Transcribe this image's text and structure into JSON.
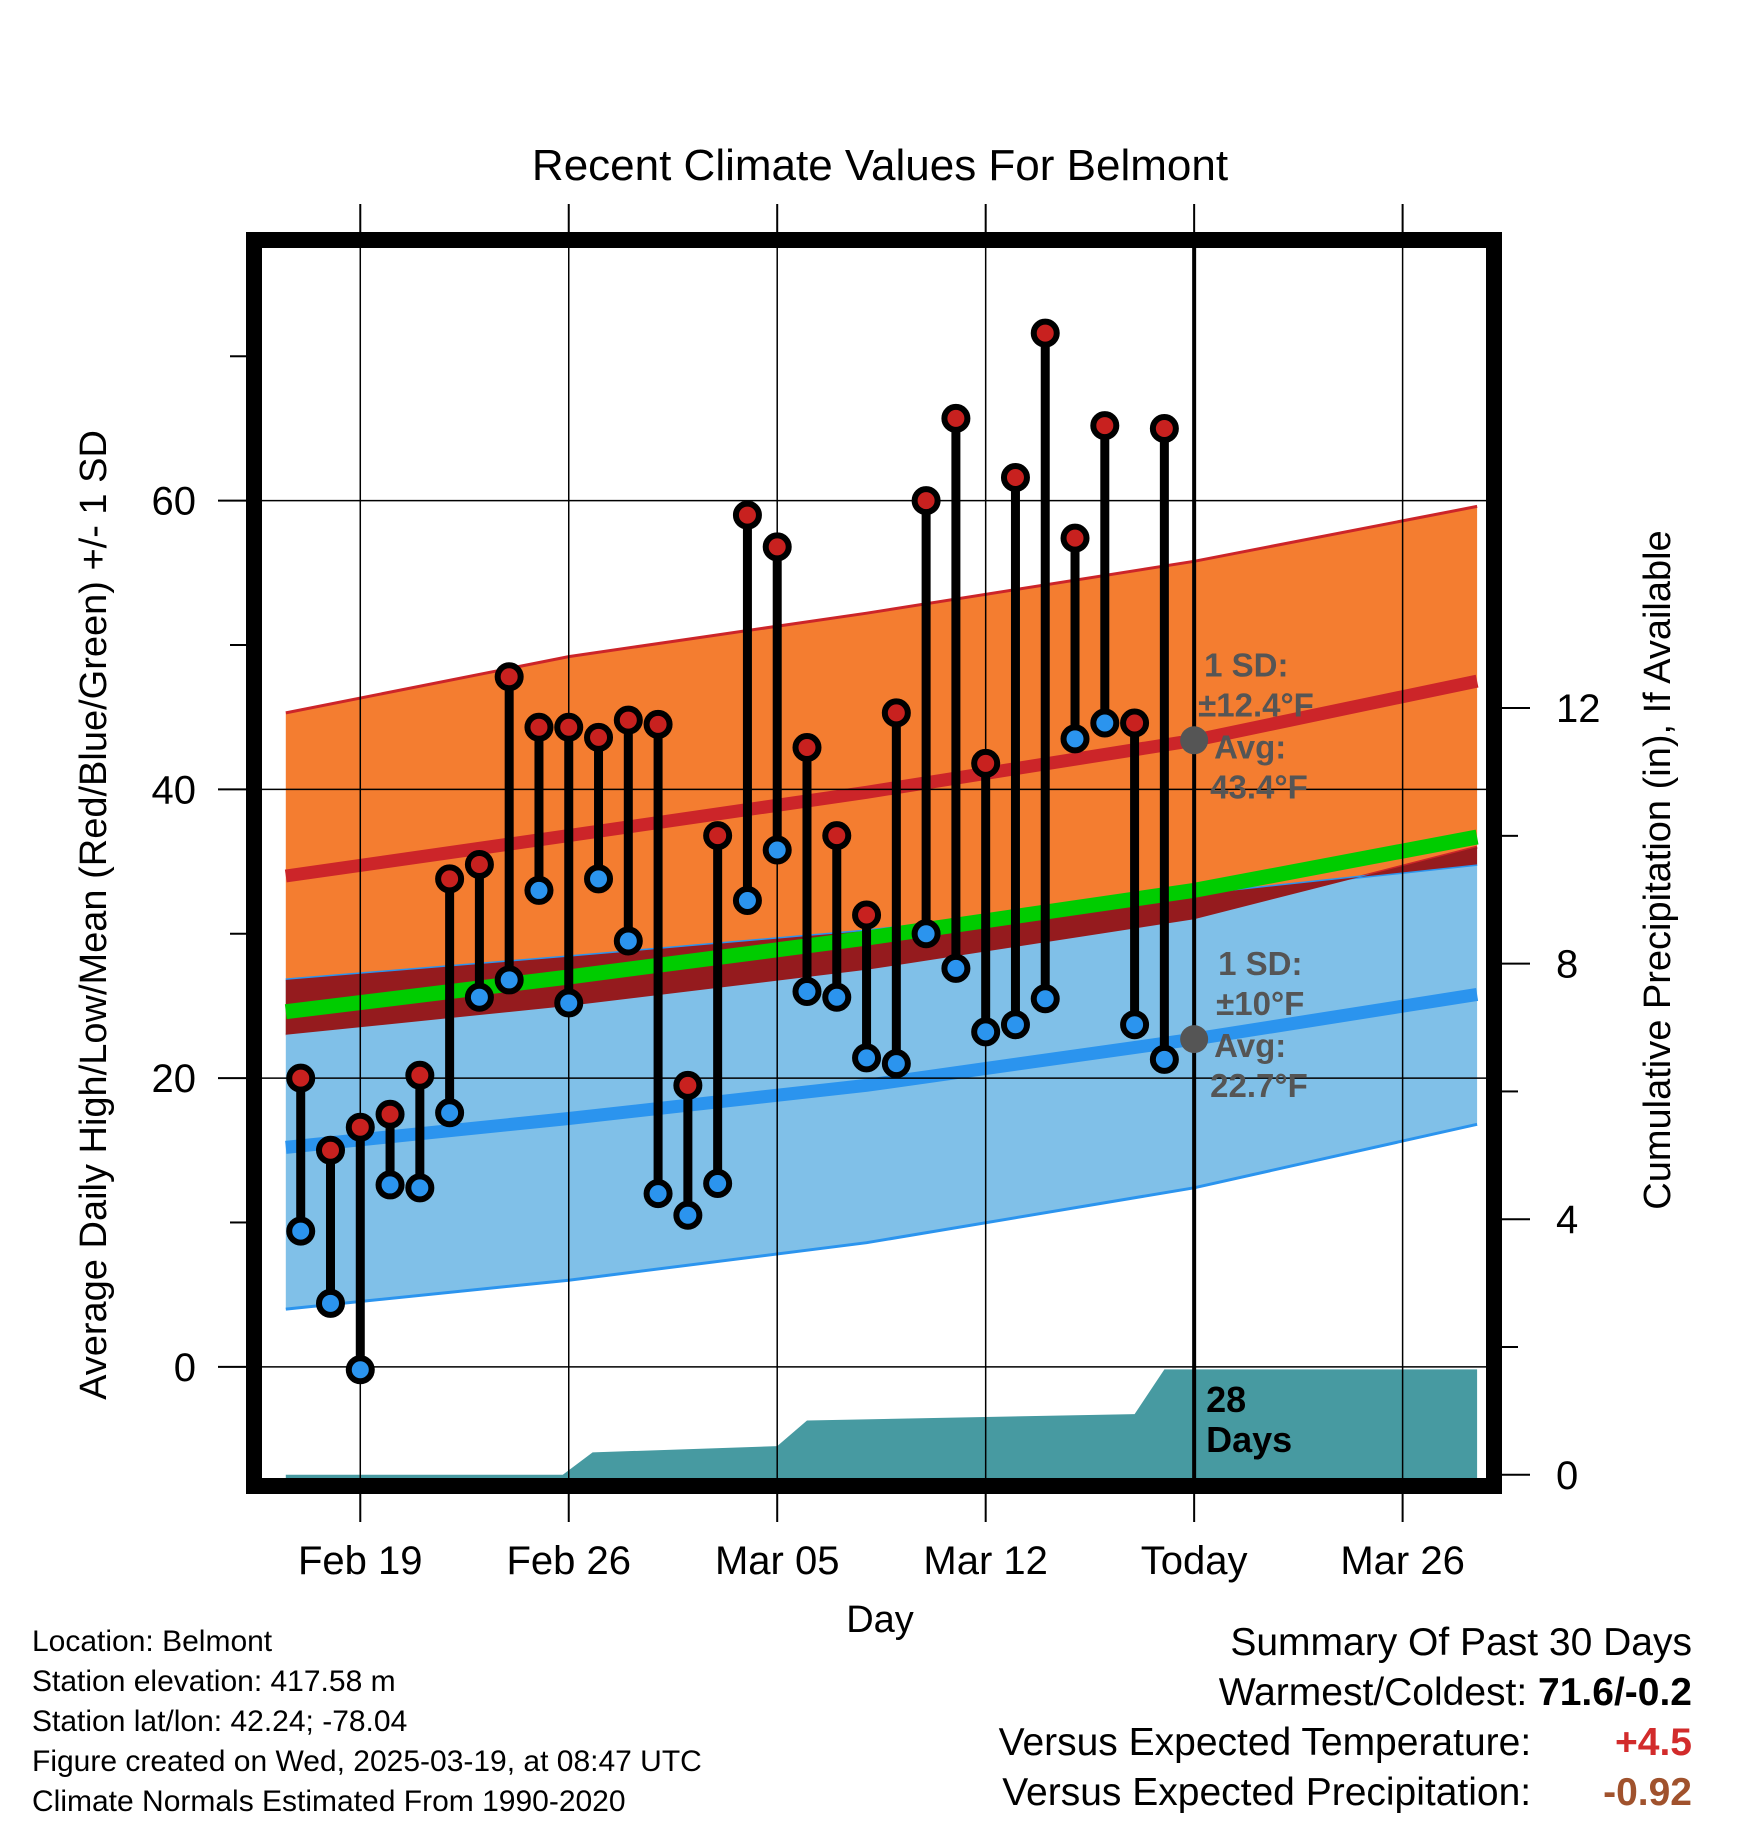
{
  "chart_data": {
    "type": "line",
    "title": "Recent Climate Values For Belmont",
    "xlabel": "Day",
    "ylabel": "Average Daily High/Low/Mean (Red/Blue/Green) +/- 1 SD",
    "y2label": "Cumulative Precipitation (in), If Available",
    "x_ticks": [
      {
        "day": 3,
        "label": "Feb 19"
      },
      {
        "day": 10,
        "label": "Feb 26"
      },
      {
        "day": 17,
        "label": "Mar 05"
      },
      {
        "day": 24,
        "label": "Mar 12"
      },
      {
        "day": 31,
        "label": "Today"
      },
      {
        "day": 38,
        "label": "Mar 26"
      }
    ],
    "xlim": [
      -0.3,
      40.8
    ],
    "ylim": [
      -7.7,
      77.5
    ],
    "y_ticks": [
      0,
      20,
      40,
      60
    ],
    "y2lim": [
      -0.05,
      19.2
    ],
    "y2_ticks": [
      0,
      4,
      8,
      12
    ],
    "today_day": 31,
    "normals": {
      "x": [
        0.5,
        10,
        20,
        31,
        40.5
      ],
      "high_mean": [
        34,
        36.8,
        39.8,
        43.4,
        47.5
      ],
      "high_sd_upper": [
        45.3,
        49.2,
        52.2,
        55.8,
        59.6
      ],
      "high_sd_lower": [
        23,
        25,
        27.5,
        31,
        36
      ],
      "low_mean": [
        15.2,
        17.2,
        19.5,
        22.7,
        25.8
      ],
      "low_sd_upper": [
        26.8,
        28.4,
        30.2,
        32.7,
        34.8
      ],
      "low_sd_lower": [
        4,
        6,
        8.6,
        12.4,
        16.8
      ],
      "mean": [
        24.6,
        27,
        29.7,
        33,
        36.7
      ]
    },
    "series": [
      {
        "name": "High",
        "color": "#c8211f",
        "values": [
          20,
          15,
          16.6,
          17.5,
          20.2,
          33.8,
          34.8,
          47.8,
          44.3,
          44.3,
          43.6,
          44.8,
          44.5,
          19.5,
          36.8,
          59,
          56.8,
          42.9,
          36.8,
          31.3,
          45.3,
          60,
          65.7,
          41.8,
          61.6,
          71.6,
          57.4,
          65.2,
          44.6,
          65
        ]
      },
      {
        "name": "Low",
        "color": "#2b94ee",
        "values": [
          9.4,
          4.4,
          -0.2,
          12.6,
          12.4,
          17.6,
          25.6,
          26.8,
          33,
          25.2,
          33.8,
          29.5,
          12,
          10.5,
          12.7,
          32.3,
          35.8,
          26,
          25.6,
          21.4,
          21,
          30,
          27.6,
          23.2,
          23.7,
          25.5,
          43.5,
          44.6,
          23.7,
          21.3
        ]
      }
    ],
    "precip_cumulative": {
      "x": [
        0.5,
        9.8,
        10.8,
        17.0,
        18.0,
        29.0,
        30.0,
        40.5
      ],
      "values": [
        0,
        0,
        0.35,
        0.45,
        0.85,
        0.95,
        1.65,
        1.65
      ]
    },
    "annotations": {
      "high_sd": "1 SD:",
      "high_sd_val": "±12.4°F",
      "high_avg": "Avg:",
      "high_avg_val": "43.4°F",
      "low_sd": "1 SD:",
      "low_sd_val": "±10°F",
      "low_avg": "Avg:",
      "low_avg_val": "22.7°F",
      "days_num": "28",
      "days_word": "Days"
    },
    "colors": {
      "high_band": "#f47d30",
      "high_line": "#cc2529",
      "low_band": "#80c0e8",
      "low_line": "#2b94ee",
      "mean_line": "#00cc00",
      "overlap_band": "#951b1e",
      "precip": "#479aa1",
      "annotation": "#555555"
    }
  },
  "info": {
    "location": "Location: Belmont",
    "elevation": "Station elevation: 417.58 m",
    "latlon": "Station lat/lon: 42.24; -78.04",
    "created": "Figure created on Wed, 2025-03-19, at 08:47 UTC",
    "normals": "Climate Normals Estimated From 1990-2020"
  },
  "summary": {
    "title": "Summary Of Past 30 Days",
    "warmest_label": "Warmest/Coldest:",
    "warmest_value": "71.6/-0.2",
    "temp_label": "Versus Expected Temperature:",
    "temp_value": "+4.5",
    "temp_color": "#d22b2b",
    "precip_label": "Versus Expected Precipitation:",
    "precip_value": "-0.92",
    "precip_color": "#a0522d"
  }
}
